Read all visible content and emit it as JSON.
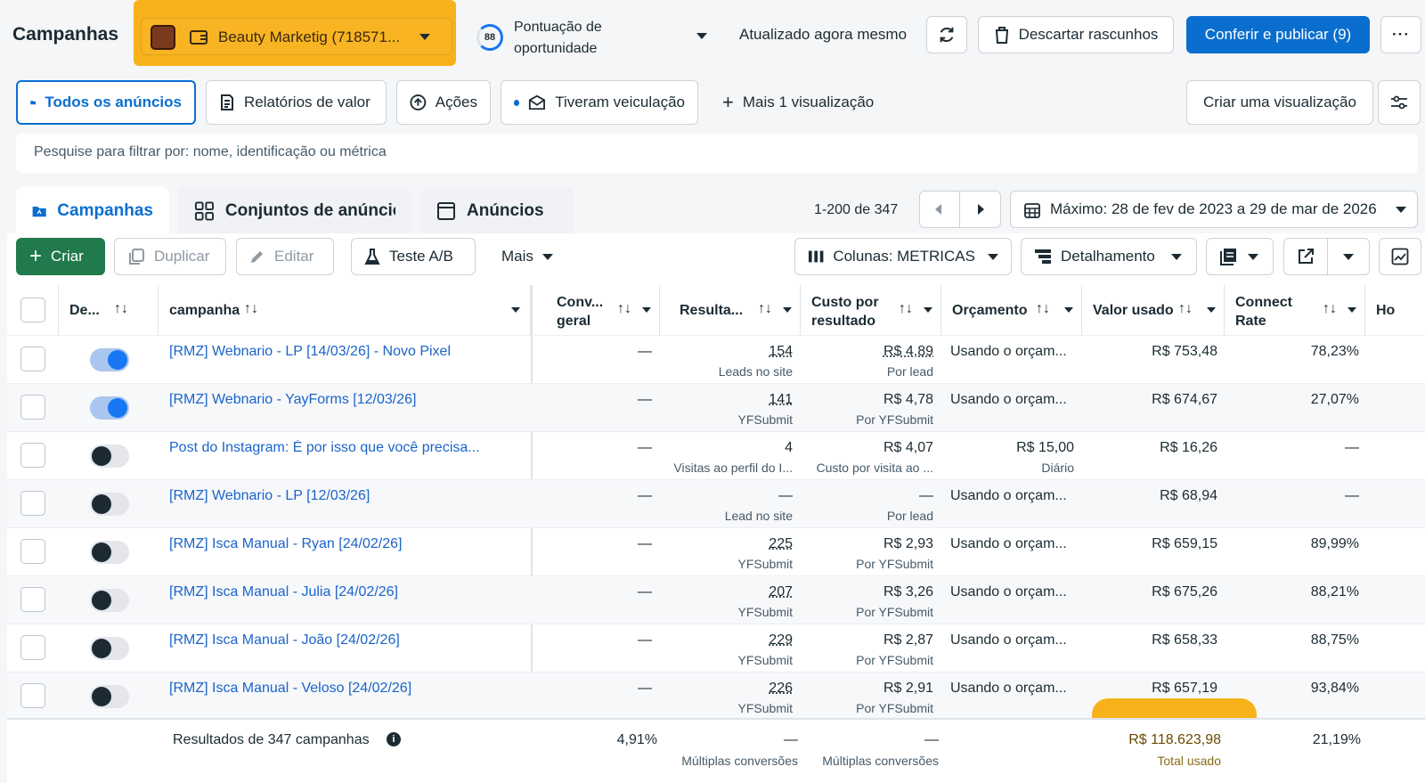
{
  "header": {
    "title": "Campanhas",
    "account_name": "Beauty Marketig (718571...",
    "score_value": "88",
    "score_label": "Pontuação de oportunidade",
    "updated": "Atualizado agora mesmo",
    "discard_label": "Descartar rascunhos",
    "publish_label": "Conferir e publicar (9)",
    "colors": {
      "primary": "#0a6ecf",
      "highlight": "#f7b21b",
      "create": "#217a4c",
      "link": "#1b64c8"
    }
  },
  "views": {
    "all_ads": "Todos os anúncios",
    "value_reports": "Relatórios de valor",
    "actions": "Ações",
    "delivered": "Tiveram veiculação",
    "more_view": "Mais 1 visualização",
    "create_view": "Criar uma visualização"
  },
  "search": {
    "placeholder": "Pesquise para filtrar por: nome, identificação ou métrica"
  },
  "tabs": [
    {
      "label": "Campanhas"
    },
    {
      "label": "Conjuntos de anúncios"
    },
    {
      "label": "Anúncios"
    }
  ],
  "pagination": {
    "range": "1-200 de 347"
  },
  "date_range": "Máximo: 28 de fev de 2023 a 29 de mar de 2026",
  "toolbar": {
    "create": "Criar",
    "duplicate": "Duplicar",
    "edit": "Editar",
    "ab_test": "Teste A/B",
    "more": "Mais",
    "columns": "Colunas: METRICAS",
    "breakdown": "Detalhamento"
  },
  "columns": {
    "delivery": "De...",
    "campaign": "campanha",
    "conv": "Conv... geral",
    "results": "Resulta...",
    "cost": "Custo por resultado",
    "budget": "Orçamento",
    "spent": "Valor usado",
    "connect": "Connect Rate",
    "next": "Ho"
  },
  "rows": [
    {
      "name": "[RMZ] Webnario - LP [14/03/26] - Novo Pixel",
      "on": true,
      "conv": "—",
      "results": "154",
      "results_sub": "Leads no site",
      "cost": "R$ 4,89",
      "cost_sub": "Por lead",
      "budget": "Usando o orçam...",
      "budget_sub": "",
      "spent": "R$ 753,48",
      "connect": "78,23%"
    },
    {
      "name": "[RMZ] Webnario - YayForms [12/03/26]",
      "on": true,
      "conv": "—",
      "results": "141",
      "results_sub": "YFSubmit",
      "cost": "R$ 4,78",
      "cost_sub": "Por YFSubmit",
      "budget": "Usando o orçam...",
      "budget_sub": "",
      "spent": "R$ 674,67",
      "connect": "27,07%"
    },
    {
      "name": "Post do Instagram: É por isso que você precisa...",
      "on": false,
      "conv": "—",
      "results": "4",
      "results_sub": "Visitas ao perfil do I...",
      "cost": "R$ 4,07",
      "cost_sub": "Custo por visita ao ...",
      "budget": "R$ 15,00",
      "budget_sub": "Diário",
      "spent": "R$ 16,26",
      "connect": "—"
    },
    {
      "name": "[RMZ] Webnario - LP [12/03/26]",
      "on": false,
      "conv": "—",
      "results": "—",
      "results_sub": "Lead no site",
      "cost": "—",
      "cost_sub": "Por lead",
      "budget": "Usando o orçam...",
      "budget_sub": "",
      "spent": "R$ 68,94",
      "connect": "—"
    },
    {
      "name": "[RMZ] Isca Manual - Ryan [24/02/26]",
      "on": false,
      "conv": "—",
      "results": "225",
      "results_sub": "YFSubmit",
      "cost": "R$ 2,93",
      "cost_sub": "Por YFSubmit",
      "budget": "Usando o orçam...",
      "budget_sub": "",
      "spent": "R$ 659,15",
      "connect": "89,99%"
    },
    {
      "name": "[RMZ] Isca Manual - Julia [24/02/26]",
      "on": false,
      "conv": "—",
      "results": "207",
      "results_sub": "YFSubmit",
      "cost": "R$ 3,26",
      "cost_sub": "Por YFSubmit",
      "budget": "Usando o orçam...",
      "budget_sub": "",
      "spent": "R$ 675,26",
      "connect": "88,21%"
    },
    {
      "name": "[RMZ] Isca Manual - João [24/02/26]",
      "on": false,
      "conv": "—",
      "results": "229",
      "results_sub": "YFSubmit",
      "cost": "R$ 2,87",
      "cost_sub": "Por YFSubmit",
      "budget": "Usando o orçam...",
      "budget_sub": "",
      "spent": "R$ 658,33",
      "connect": "88,75%"
    },
    {
      "name": "[RMZ] Isca Manual - Veloso [24/02/26]",
      "on": false,
      "conv": "—",
      "results": "226",
      "results_sub": "YFSubmit",
      "cost": "R$ 2,91",
      "cost_sub": "Por YFSubmit",
      "budget": "Usando o orçam...",
      "budget_sub": "",
      "spent": "R$ 657,19",
      "connect": "93,84%"
    }
  ],
  "footer": {
    "label": "Resultados de 347 campanhas",
    "conv": "4,91%",
    "results": "—",
    "results_sub": "Múltiplas conversões",
    "cost": "—",
    "cost_sub": "Múltiplas conversões",
    "spent": "R$ 118.623,98",
    "spent_sub": "Total usado",
    "connect": "21,19%"
  }
}
